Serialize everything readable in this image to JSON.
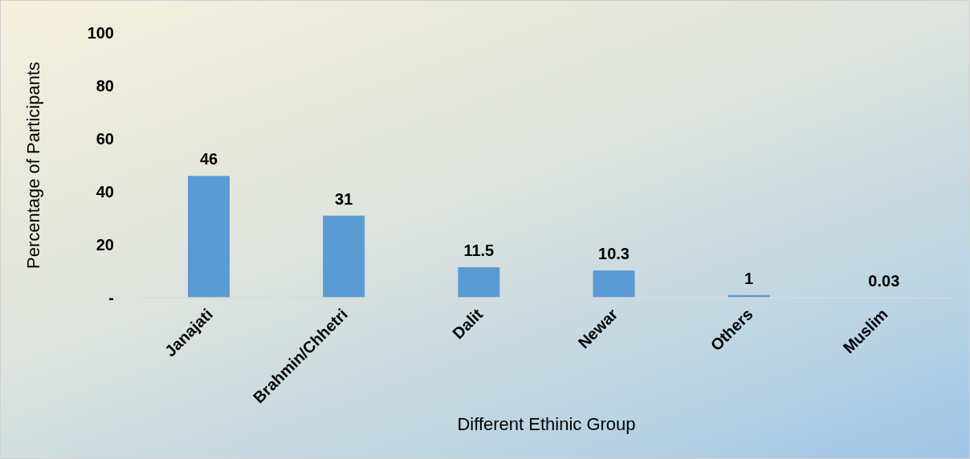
{
  "chart_data": {
    "type": "bar",
    "xlabel": "Different Ethinic Group",
    "ylabel": "Percentage of Participants",
    "categories": [
      "Janajati",
      "Brahmin/Chhetri",
      "Dalit",
      "Newar",
      "Others",
      "Muslim"
    ],
    "values": [
      46,
      31,
      11.5,
      10.3,
      1,
      0.03
    ],
    "color": "#5b9bd5",
    "ylim": [
      0,
      100
    ],
    "yticks": [
      {
        "value": 0,
        "label": "-"
      },
      20,
      40,
      60,
      80,
      100
    ],
    "grid": false,
    "data_labels": true
  }
}
